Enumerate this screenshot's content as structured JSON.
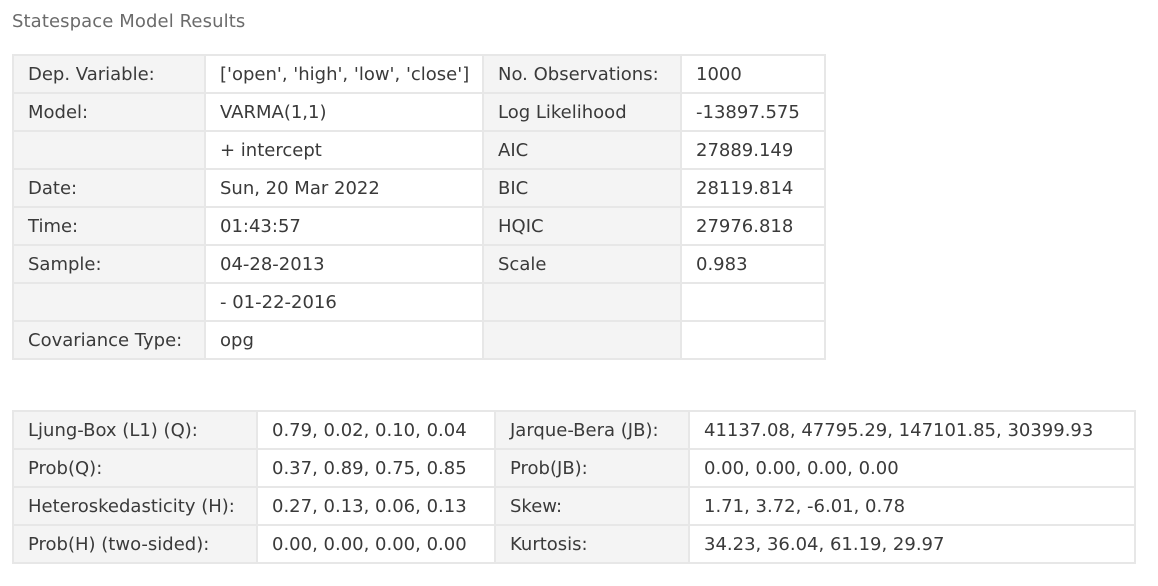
{
  "title": "Statespace Model Results",
  "summary_table": {
    "rows": [
      {
        "l1": "Dep. Variable:",
        "v1": "['open', 'high', 'low', 'close']",
        "l2": "No. Observations:",
        "v2": "1000"
      },
      {
        "l1": "Model:",
        "v1": "VARMA(1,1)",
        "l2": "Log Likelihood",
        "v2": "-13897.575"
      },
      {
        "l1": "",
        "v1": "+ intercept",
        "l2": "AIC",
        "v2": "27889.149"
      },
      {
        "l1": "Date:",
        "v1": "Sun, 20 Mar 2022",
        "l2": "BIC",
        "v2": "28119.814"
      },
      {
        "l1": "Time:",
        "v1": "01:43:57",
        "l2": "HQIC",
        "v2": "27976.818"
      },
      {
        "l1": "Sample:",
        "v1": "04-28-2013",
        "l2": "Scale",
        "v2": "0.983"
      },
      {
        "l1": "",
        "v1": "- 01-22-2016",
        "l2": "",
        "v2": ""
      },
      {
        "l1": "Covariance Type:",
        "v1": "opg",
        "l2": "",
        "v2": ""
      }
    ]
  },
  "diagnostics_table": {
    "rows": [
      {
        "l1": "Ljung-Box (L1) (Q):",
        "v1": "0.79, 0.02, 0.10, 0.04",
        "l2": "Jarque-Bera (JB):",
        "v2": "41137.08, 47795.29, 147101.85, 30399.93"
      },
      {
        "l1": "Prob(Q):",
        "v1": "0.37, 0.89, 0.75, 0.85",
        "l2": "Prob(JB):",
        "v2": "0.00, 0.00, 0.00, 0.00"
      },
      {
        "l1": "Heteroskedasticity (H):",
        "v1": "0.27, 0.13, 0.06, 0.13",
        "l2": "Skew:",
        "v2": "1.71, 3.72, -6.01, 0.78"
      },
      {
        "l1": "Prob(H) (two-sided):",
        "v1": "0.00, 0.00, 0.00, 0.00",
        "l2": "Kurtosis:",
        "v2": "34.23, 36.04, 61.19, 29.97"
      }
    ]
  }
}
